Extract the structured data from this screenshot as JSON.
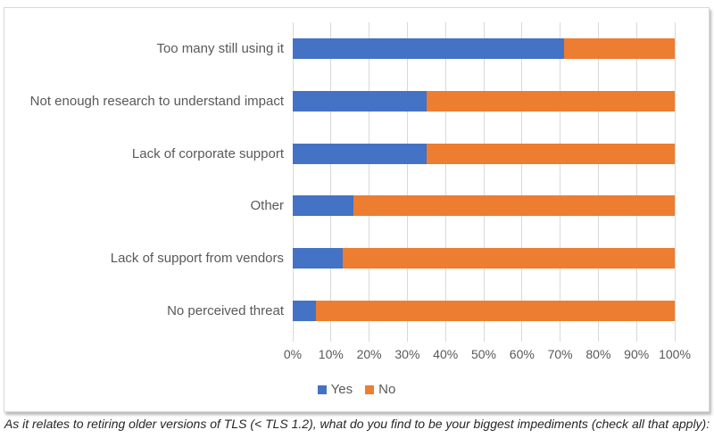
{
  "figure": {
    "caption": "As it relates to retiring older versions of TLS (< TLS 1.2), what do you find to be your biggest impediments (check all that apply):"
  },
  "chart_data": {
    "type": "bar",
    "variant": "horizontal-stacked-100pct",
    "title": "",
    "categories": [
      "Too many still using it",
      "Not enough research to understand impact",
      "Lack of corporate support",
      "Other",
      "Lack of support from vendors",
      "No perceived threat"
    ],
    "series": [
      {
        "name": "Yes",
        "color": "#4472C4",
        "values": [
          71,
          35,
          35,
          16,
          13,
          6
        ]
      },
      {
        "name": "No",
        "color": "#ED7D31",
        "values": [
          29,
          65,
          65,
          84,
          87,
          94
        ]
      }
    ],
    "x_axis": {
      "min": 0,
      "max": 100,
      "step": 10,
      "tick_labels": [
        "0%",
        "10%",
        "20%",
        "30%",
        "40%",
        "50%",
        "60%",
        "70%",
        "80%",
        "90%",
        "100%"
      ]
    },
    "legend": {
      "position": "bottom",
      "entries": [
        "Yes",
        "No"
      ]
    },
    "grid": true,
    "gridline_color": "#d9d9d9",
    "text_color": "#595959"
  }
}
